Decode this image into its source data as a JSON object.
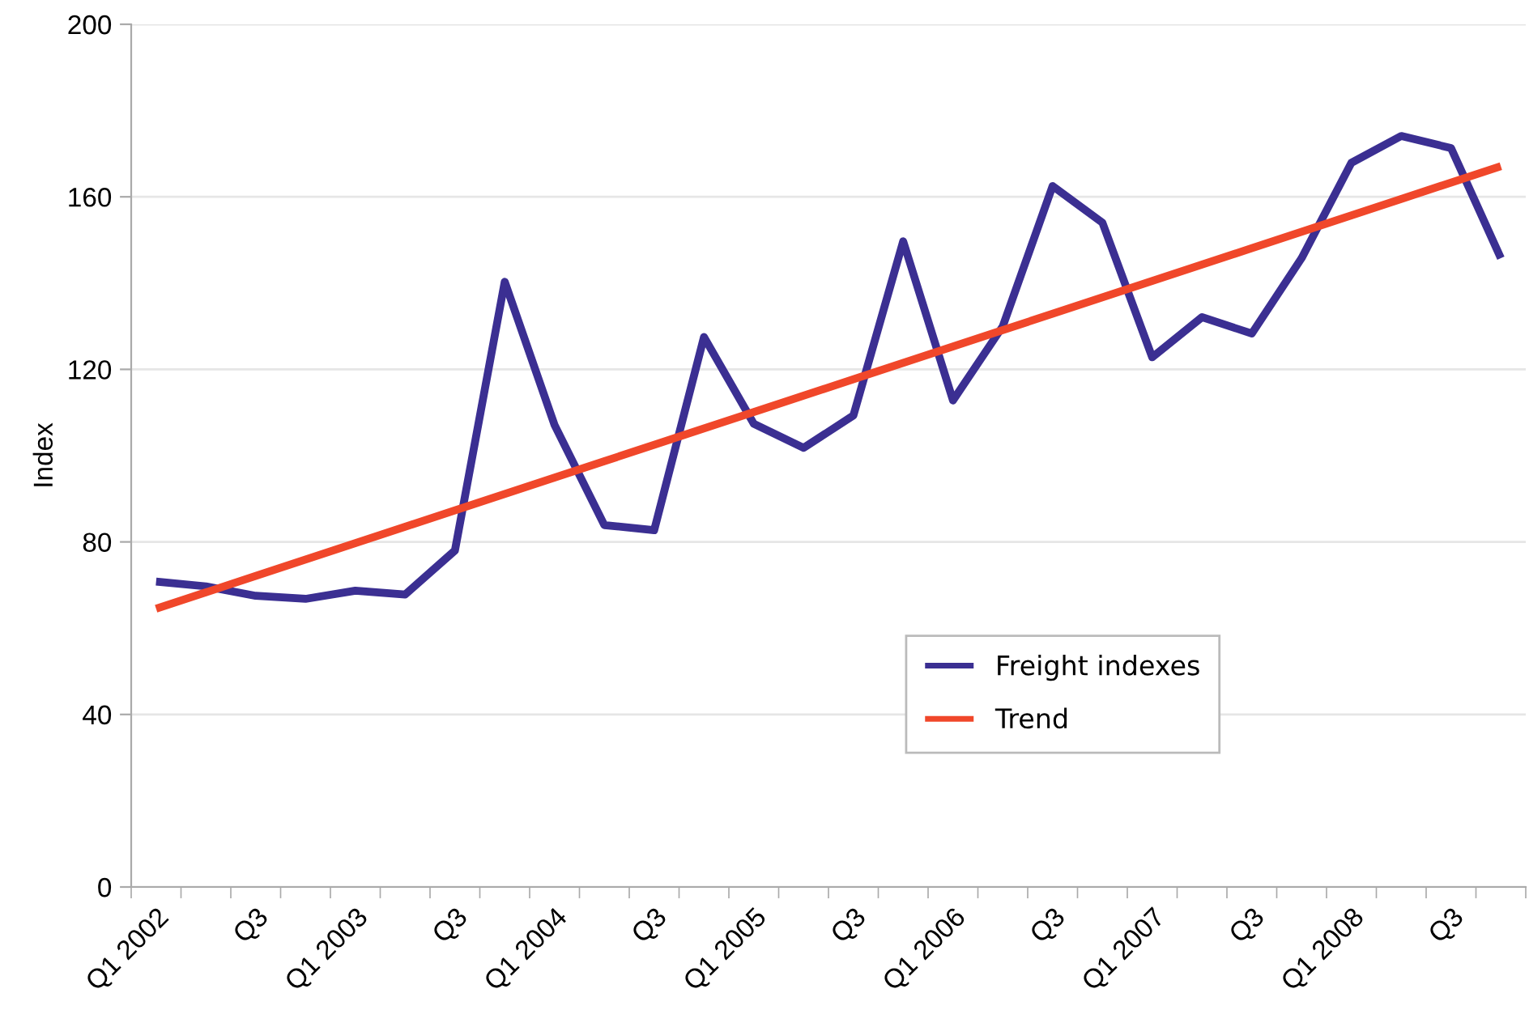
{
  "chart_data": {
    "type": "line",
    "ylabel": "Index",
    "categories": [
      "Q1 2002",
      null,
      "Q3",
      null,
      "Q1 2003",
      null,
      "Q3",
      null,
      "Q1 2004",
      null,
      "Q3",
      null,
      "Q1 2005",
      null,
      "Q3",
      null,
      "Q1 2006",
      null,
      "Q3",
      null,
      "Q1 2007",
      null,
      "Q3",
      null,
      "Q1 2008",
      null,
      "Q3",
      null
    ],
    "series": [
      {
        "name": "Freight indexes",
        "color": "#3b2f92",
        "values": [
          70.8,
          69.7,
          67.5,
          66.8,
          68.7,
          67.8,
          78.0,
          140.3,
          107.1,
          83.9,
          82.7,
          127.5,
          107.4,
          101.8,
          109.3,
          149.7,
          112.8,
          130.0,
          162.5,
          154.0,
          122.8,
          132.1,
          128.3,
          145.8,
          167.9,
          174.1,
          171.3,
          145.8
        ]
      },
      {
        "name": "Trend",
        "color": "#f0472a",
        "values": [
          64.5,
          68.3,
          72.1,
          75.9,
          79.7,
          83.5,
          87.3,
          91.1,
          94.9,
          98.7,
          102.5,
          106.3,
          110.1,
          113.9,
          117.7,
          121.5,
          125.3,
          129.1,
          132.9,
          136.7,
          140.5,
          144.3,
          148.1,
          151.9,
          155.7,
          159.5,
          163.3,
          167.1
        ]
      }
    ],
    "ylim": [
      0,
      200
    ],
    "yticks": [
      0,
      40,
      80,
      120,
      160,
      200
    ],
    "grid": "y",
    "legend": "bottom right",
    "marker": "none",
    "line_style": "solid"
  }
}
